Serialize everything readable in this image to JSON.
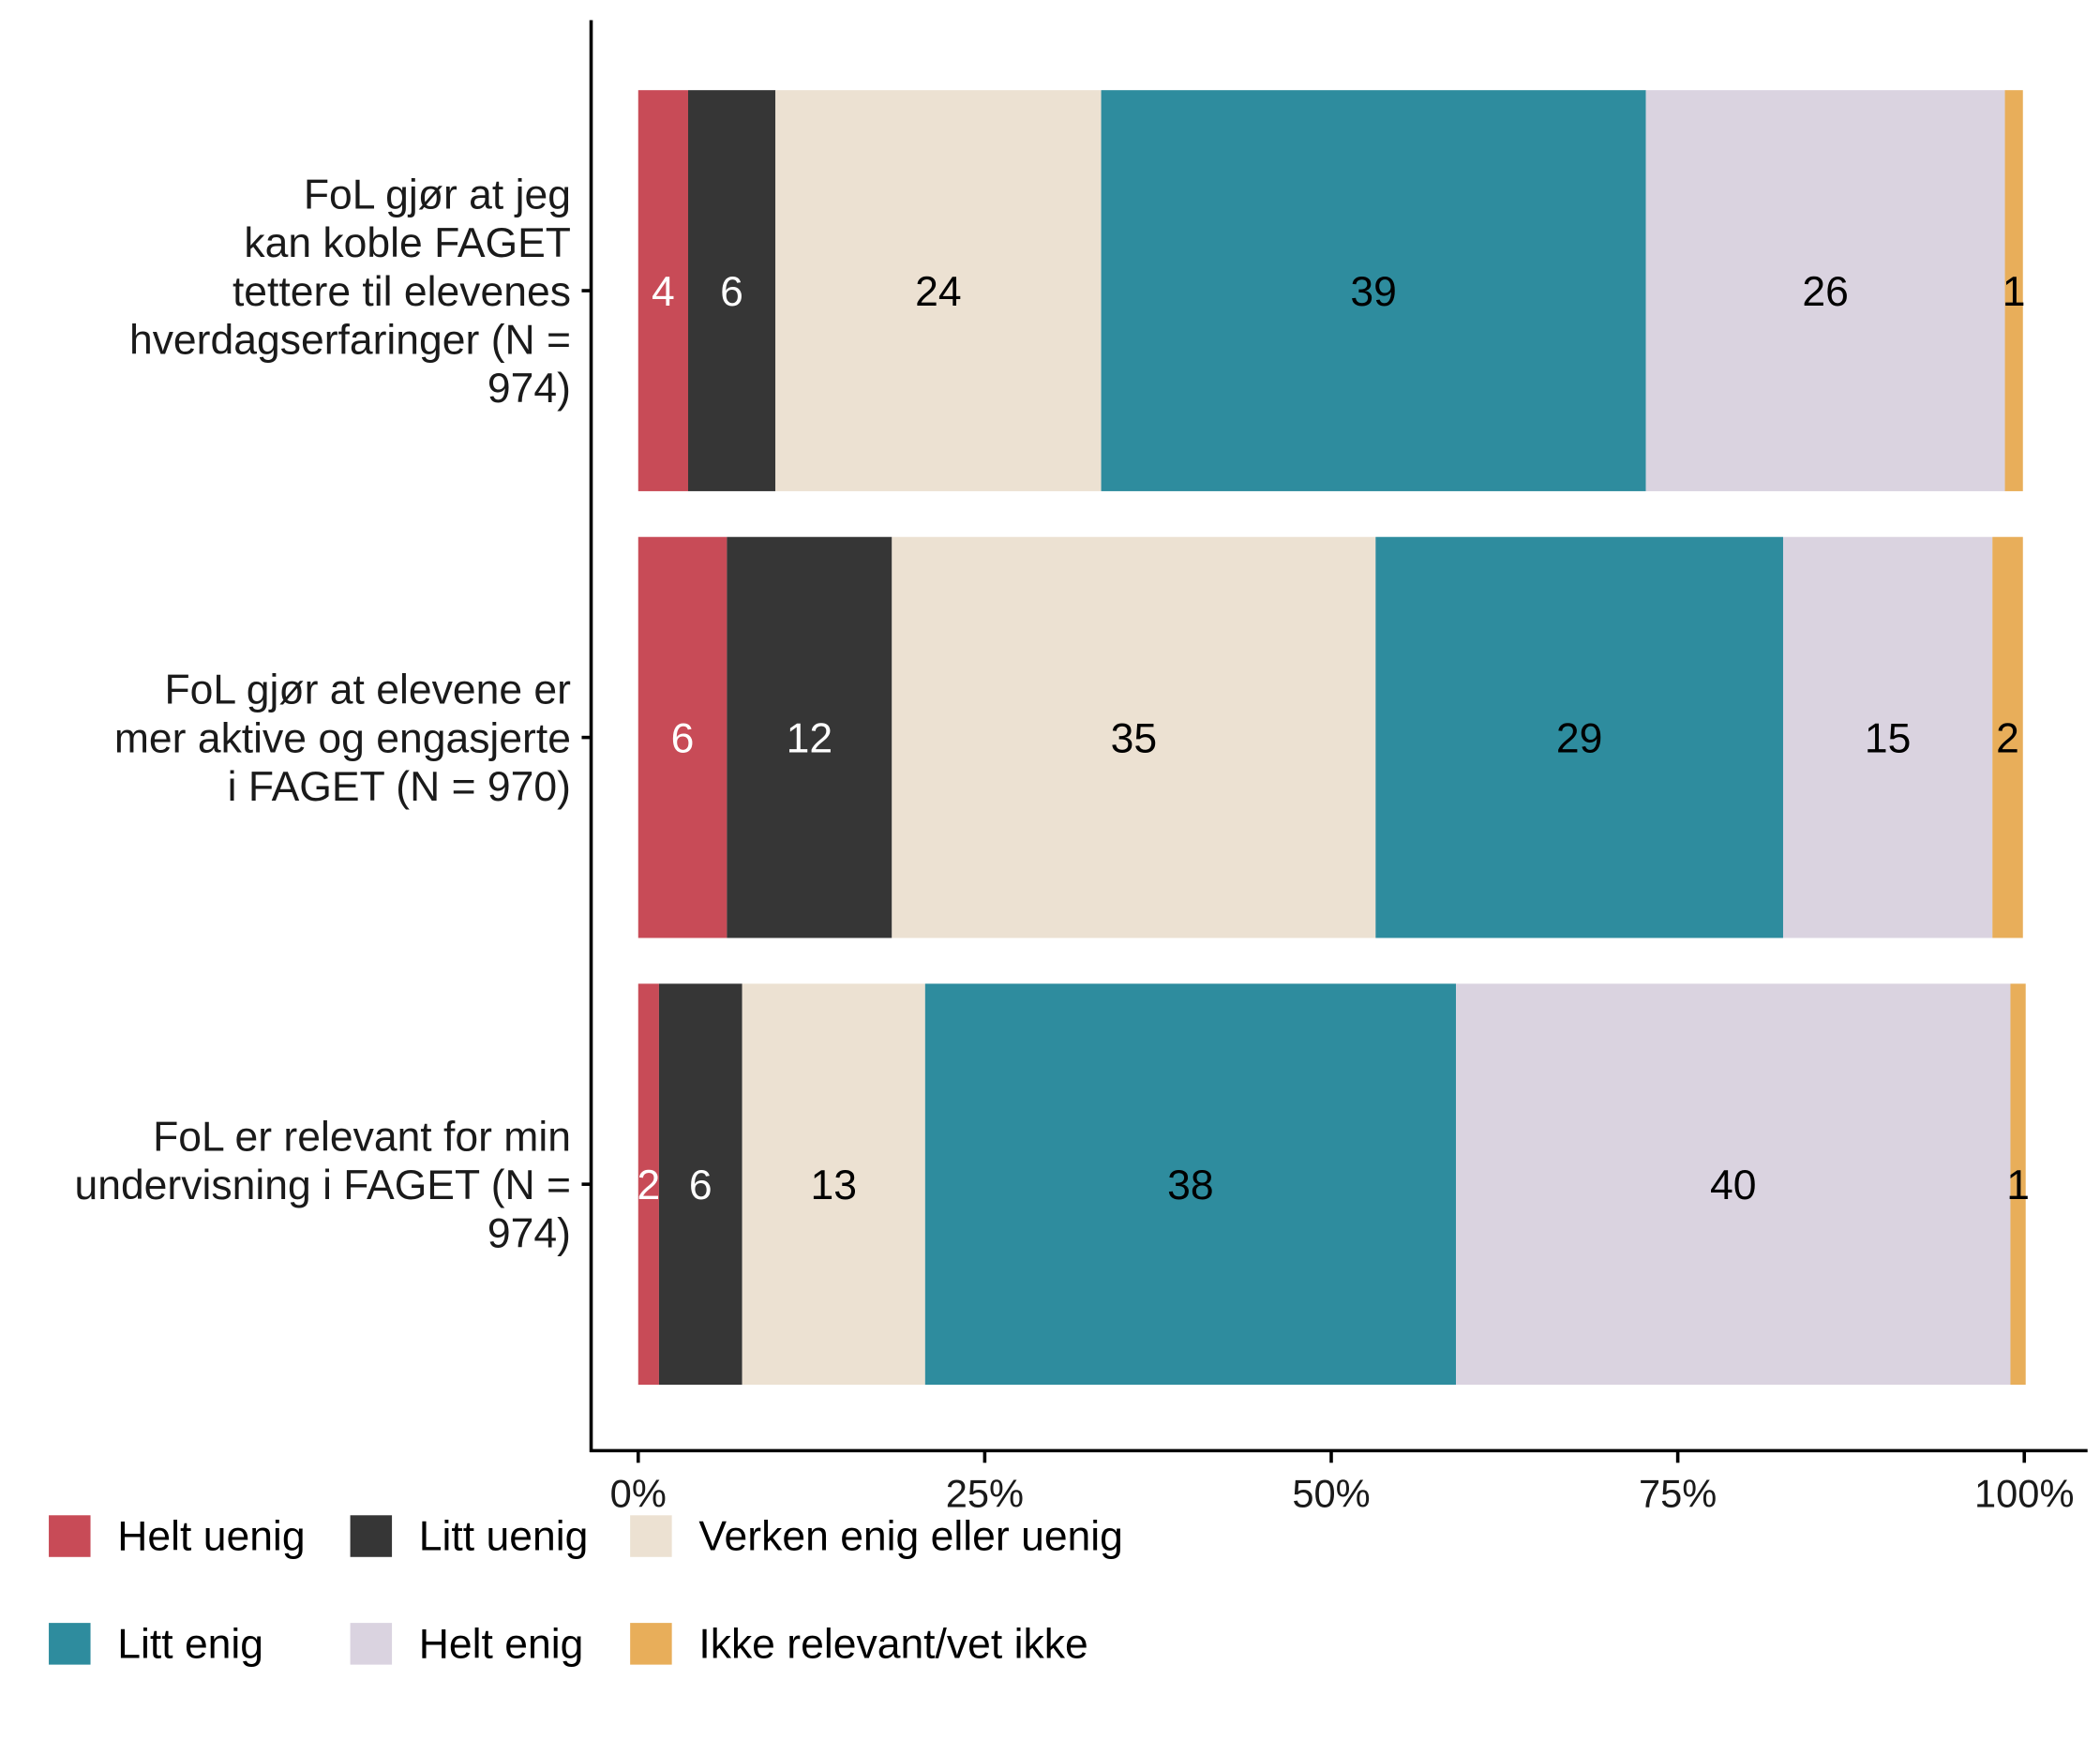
{
  "chart_data": {
    "type": "bar",
    "orientation": "horizontal",
    "stacked": true,
    "title": "",
    "xlabel": "",
    "ylabel": "",
    "xlim": [
      0,
      100
    ],
    "x_ticks": [
      "0%",
      "25%",
      "50%",
      "75%",
      "100%"
    ],
    "categories": [
      [
        "FoL gjør at jeg",
        "kan koble FAGET",
        "tettere til elevenes",
        "hverdagserfaringer (N =",
        "974)"
      ],
      [
        "FoL gjør at elevene er",
        "mer aktive og engasjerte",
        "i FAGET (N = 970)"
      ],
      [
        "FoL er relevant for min",
        "undervisning i FAGET (N =",
        "974)"
      ]
    ],
    "series": [
      {
        "name": "Helt uenig",
        "color": "#C84B57",
        "label_color": "#ffffff",
        "values": [
          3.6,
          6.4,
          1.5
        ],
        "labels": [
          "4",
          "6",
          "2"
        ]
      },
      {
        "name": "Litt uenig",
        "color": "#363636",
        "label_color": "#ffffff",
        "values": [
          6.3,
          11.9,
          6.0
        ],
        "labels": [
          "6",
          "12",
          "6"
        ]
      },
      {
        "name": "Verken enig eller uenig",
        "color": "#ECE1D2",
        "label_color": "#000000",
        "values": [
          23.5,
          34.9,
          13.2
        ],
        "labels": [
          "24",
          "35",
          "13"
        ]
      },
      {
        "name": "Litt enig",
        "color": "#2E8C9E",
        "label_color": "#000000",
        "values": [
          39.3,
          29.4,
          38.3
        ],
        "labels": [
          "39",
          "29",
          "38"
        ]
      },
      {
        "name": "Helt enig",
        "color": "#DAD3E0",
        "label_color": "#000000",
        "values": [
          25.9,
          15.1,
          40.0
        ],
        "labels": [
          "26",
          "15",
          "40"
        ]
      },
      {
        "name": "Ikke relevant/vet ikke",
        "color": "#E8AE5A",
        "label_color": "#000000",
        "values": [
          1.3,
          2.2,
          1.1
        ],
        "labels": [
          "1",
          "2",
          "1"
        ]
      }
    ],
    "legend_position": "bottom-left",
    "grid": false
  }
}
